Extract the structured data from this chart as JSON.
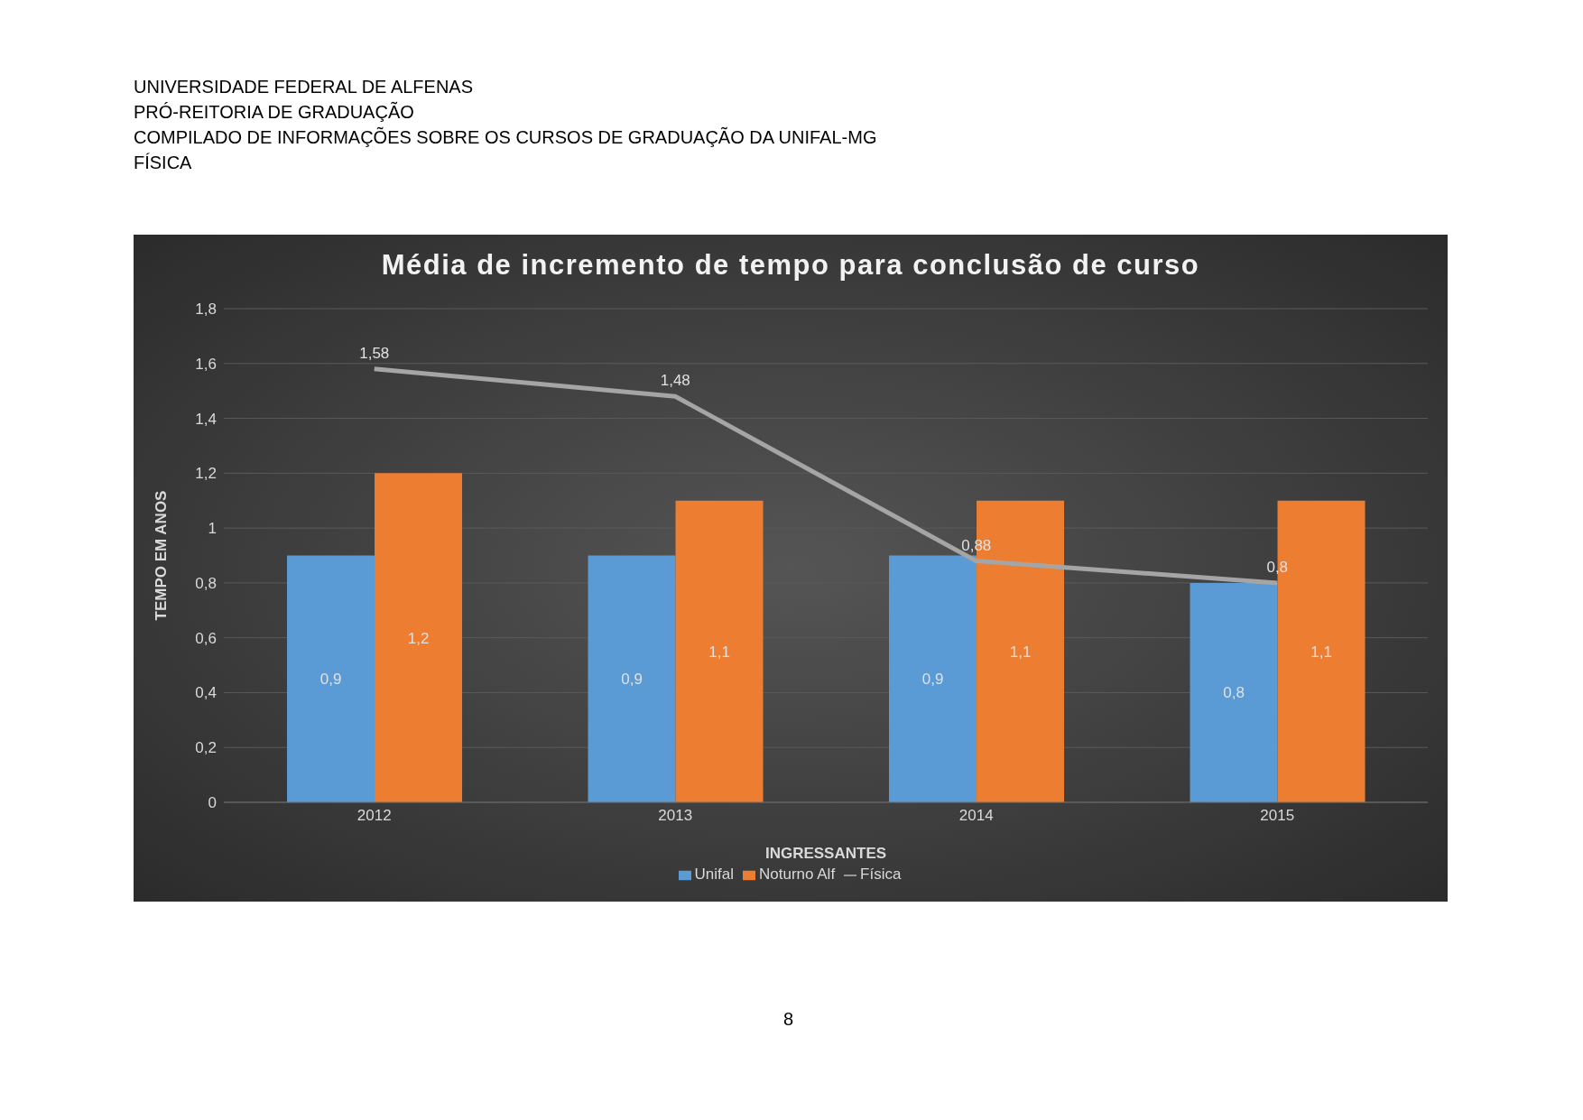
{
  "chart_data": {
    "type": "bar",
    "title": "Média de incremento de tempo para conclusão de curso",
    "xlabel": "INGRESSANTES",
    "ylabel": "TEMPO EM ANOS",
    "annotations": [
      "UNIVERSIDADE FEDERAL DE ALFENAS",
      "PRÓ-REITORIA DE GRADUAÇÃO",
      "COMPILADO DE INFORMAÇÕES SOBRE OS CURSOS DE GRADUAÇÃO DA UNIFAL-MG",
      "FÍSICA",
      "8"
    ],
    "categories": [
      "2012",
      "2013",
      "2014",
      "2015"
    ],
    "series": [
      {
        "name": "Unifal",
        "color": "#5b9bd5",
        "values": [
          0.9,
          0.9,
          0.9,
          0.8
        ],
        "value_labels": [
          "0,9",
          "0,9",
          "0,9",
          "0,8"
        ]
      },
      {
        "name": "Noturno Alf",
        "color": "#ed7d31",
        "values": [
          1.2,
          1.1,
          1.1,
          1.1
        ],
        "value_labels": [
          "1,2",
          "1,1",
          "1,1",
          "1,1"
        ]
      },
      {
        "name": "Física",
        "type": "line",
        "color": "#a5a5a5",
        "values": [
          1.58,
          1.48,
          0.88,
          0.8
        ],
        "value_labels": [
          "1,58",
          "1,48",
          "0,88",
          "0,8"
        ]
      }
    ],
    "ylim": [
      0,
      1.8
    ],
    "yticks": [
      0,
      {
        "value": 0.2,
        "label": "0,2"
      },
      {
        "value": 0.4,
        "label": "0,4"
      },
      {
        "value": 0.6,
        "label": "0,6"
      },
      {
        "value": 0.8,
        "label": "0,8"
      },
      1,
      {
        "value": 1.2,
        "label": "1,2"
      },
      {
        "value": 1.4,
        "label": "1,4"
      },
      {
        "value": 1.6,
        "label": "1,6"
      },
      {
        "value": 1.8,
        "label": "1,8"
      }
    ],
    "grid": "y",
    "legend": "bottom",
    "marker": "none"
  }
}
